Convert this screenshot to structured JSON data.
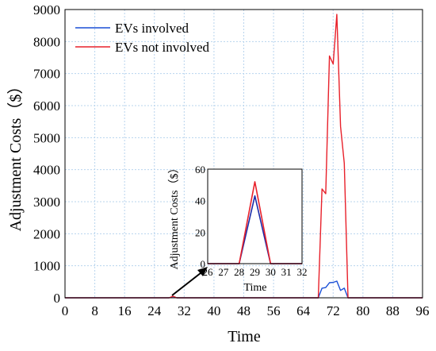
{
  "chart_data": [
    {
      "type": "line",
      "xlabel": "Time",
      "ylabel": "Adjustment Costs（$）",
      "xlim": [
        0,
        96
      ],
      "ylim": [
        0,
        9000
      ],
      "xticks": [
        0,
        8,
        16,
        24,
        32,
        40,
        48,
        56,
        64,
        72,
        80,
        88,
        96
      ],
      "yticks": [
        0,
        1000,
        2000,
        3000,
        4000,
        5000,
        6000,
        7000,
        8000,
        9000
      ],
      "grid": true,
      "legend_position": "top-left",
      "series": [
        {
          "name": "EVs involved",
          "color": "#1a4fd6",
          "points": [
            [
              0,
              0
            ],
            [
              28,
              0
            ],
            [
              29,
              40
            ],
            [
              30,
              0
            ],
            [
              68,
              0
            ],
            [
              69,
              300
            ],
            [
              70,
              320
            ],
            [
              71,
              470
            ],
            [
              72,
              480
            ],
            [
              73,
              520
            ],
            [
              74,
              230
            ],
            [
              75,
              300
            ],
            [
              76,
              0
            ],
            [
              96,
              0
            ]
          ]
        },
        {
          "name": "EVs not involved",
          "color": "#e8202a",
          "points": [
            [
              0,
              0
            ],
            [
              28,
              0
            ],
            [
              29,
              50
            ],
            [
              30,
              0
            ],
            [
              68,
              0
            ],
            [
              69,
              3400
            ],
            [
              70,
              3250
            ],
            [
              71,
              7550
            ],
            [
              72,
              7300
            ],
            [
              73,
              8850
            ],
            [
              74,
              5350
            ],
            [
              75,
              4200
            ],
            [
              76,
              0
            ],
            [
              96,
              0
            ]
          ]
        }
      ]
    },
    {
      "type": "line",
      "inset": true,
      "xlabel": "Time",
      "ylabel": "Adjustment Costs（$）",
      "xlim": [
        26,
        32
      ],
      "ylim": [
        0,
        60
      ],
      "xticks": [
        26,
        27,
        28,
        29,
        30,
        31,
        32
      ],
      "yticks": [
        0,
        20,
        40,
        60
      ],
      "grid": false,
      "series": [
        {
          "name": "EVs involved",
          "color": "#1a2aa8",
          "points": [
            [
              26,
              0
            ],
            [
              28,
              0
            ],
            [
              29,
              43
            ],
            [
              30,
              0
            ],
            [
              32,
              0
            ]
          ]
        },
        {
          "name": "EVs not involved",
          "color": "#e8202a",
          "points": [
            [
              26,
              0
            ],
            [
              28,
              0
            ],
            [
              29,
              52
            ],
            [
              30,
              0
            ],
            [
              32,
              0
            ]
          ]
        }
      ]
    }
  ]
}
